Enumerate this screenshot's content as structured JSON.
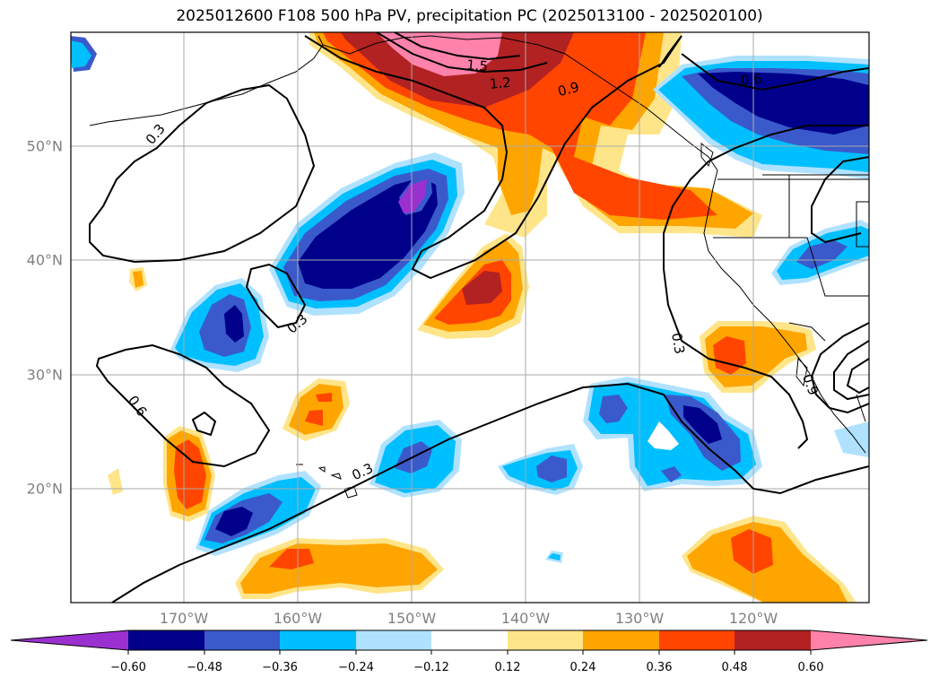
{
  "title": "2025012600 F108 500 hPa PV, precipitation PC (2025013100 - 2025020100)",
  "map": {
    "lat_labels": [
      "50°N",
      "40°N",
      "30°N",
      "20°N"
    ],
    "lon_labels": [
      "170°W",
      "160°W",
      "150°W",
      "140°W",
      "130°W",
      "120°W"
    ],
    "gridlines": true,
    "contour_labels": [
      "0.3",
      "0.3",
      "0.3",
      "0.3",
      "0.6",
      "0.9",
      "1.2",
      "1.5",
      "0.6",
      "0.9"
    ]
  },
  "colorbar": {
    "colors": [
      "#9b30d0",
      "#00008b",
      "#3a5acc",
      "#00bfff",
      "#b0e2ff",
      "#ffffff",
      "#ffe58a",
      "#ffa500",
      "#ff4500",
      "#b22222",
      "#ff82ab"
    ],
    "tick_labels": [
      "−0.60",
      "−0.48",
      "−0.36",
      "−0.24",
      "−0.12",
      "0.12",
      "0.24",
      "0.36",
      "0.48",
      "0.60"
    ],
    "extend": "both"
  }
}
